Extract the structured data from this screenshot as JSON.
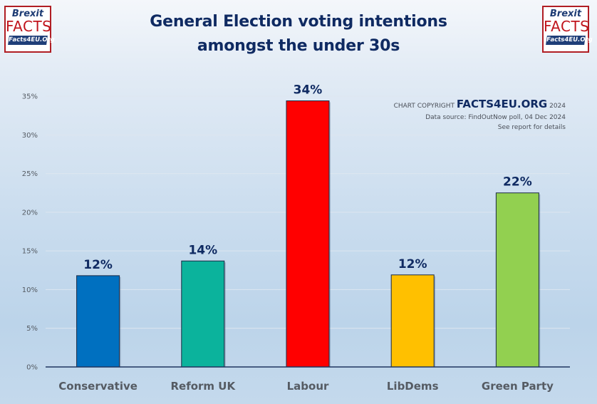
{
  "logo": {
    "line1": "Brexit",
    "line2": "FACTS",
    "line3": "Facts4EU.Org"
  },
  "copyright": {
    "prefix": "CHART COPYRIGHT",
    "brand": "FACTS4EU.ORG",
    "year": "2024",
    "source": "Data source: FindOutNow poll, 04 Dec 2024",
    "note": "See report for details"
  },
  "chart_data": {
    "type": "bar",
    "title": "General Election voting intentions amongst the under 30s",
    "title_lines": [
      "General Election voting intentions",
      "amongst the under 30s"
    ],
    "xlabel": "",
    "ylabel": "",
    "categories": [
      "Conservative",
      "Reform UK",
      "Labour",
      "LibDems",
      "Green Party"
    ],
    "values": [
      11.8,
      13.7,
      34.4,
      11.9,
      22.5
    ],
    "data_labels": [
      "12%",
      "14%",
      "34%",
      "12%",
      "22%"
    ],
    "colors": [
      "#0070c0",
      "#0bb39c",
      "#ff0000",
      "#ffc000",
      "#92d050"
    ],
    "ylim": [
      0,
      35
    ],
    "yticks": [
      0,
      5,
      10,
      15,
      20,
      25,
      30,
      35
    ],
    "ytick_labels": [
      "0%",
      "5%",
      "10%",
      "15%",
      "20%",
      "25%",
      "30%",
      "35%"
    ],
    "grid": true,
    "legend": "none"
  }
}
